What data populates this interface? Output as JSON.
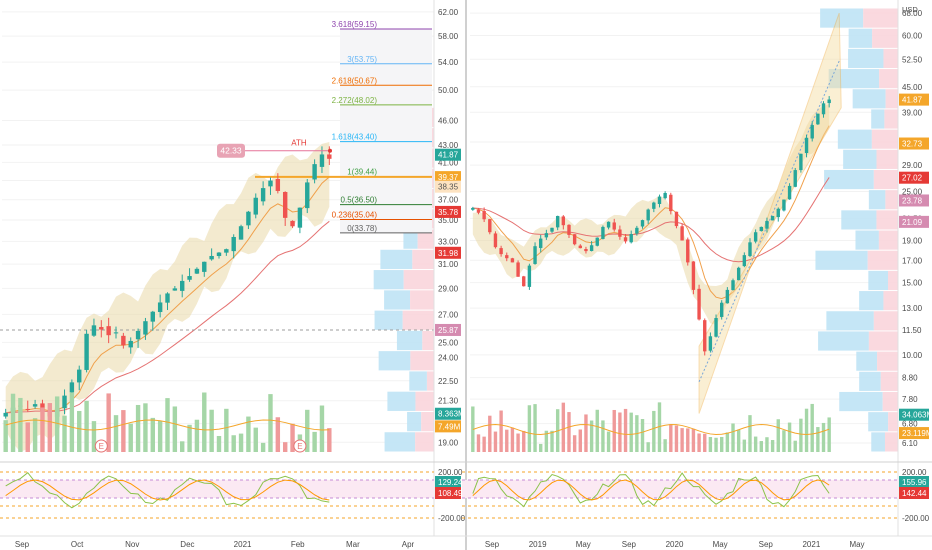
{
  "colors": {
    "up": "#26a69a",
    "down": "#ef5350",
    "vol_up": "#a5d6a7",
    "vol_down": "#ef9a9a",
    "vol_ma": "#f4a62a",
    "band": "#e9d9a8",
    "ema_fast": "#f0a04b",
    "ema_slow": "#e57373",
    "cci": "#8bc34a",
    "cci_ma": "#ff9800",
    "grid": "#f2f2f2",
    "text": "#4a4a4a",
    "white": "#ffffff"
  },
  "chart_data": [
    {
      "type": "candlestick",
      "name": "left-daily",
      "x_ticks": [
        "Sep",
        "Oct",
        "Nov",
        "Dec",
        "2021",
        "Feb",
        "Mar",
        "Apr"
      ],
      "price_ticks": [
        "62.00",
        "58.00",
        "54.00",
        "50.00",
        "46.00",
        "43.00",
        "41.00",
        "39.00",
        "37.00",
        "35.00",
        "33.00",
        "31.00",
        "29.00",
        "27.00",
        "25.00",
        "24.00",
        "22.50",
        "21.30",
        "20.00",
        "19.00"
      ],
      "price_range": [
        18.5,
        63
      ],
      "scale": "log",
      "price_tags": [
        {
          "label": "41.87",
          "value": 41.87,
          "color": "#26a69a"
        },
        {
          "label": "39.37",
          "value": 39.37,
          "color": "#f4a62a"
        },
        {
          "label": "38.35",
          "value": 38.35,
          "color": "#fde3c2"
        },
        {
          "label": "35.78",
          "value": 35.78,
          "color": "#e53935"
        },
        {
          "label": "31.98",
          "value": 31.98,
          "color": "#e53935"
        },
        {
          "label": "25.87",
          "value": 25.87,
          "color": "#d58bb0"
        },
        {
          "label": "8.363M",
          "value": 20.55,
          "color": "#26a69a"
        },
        {
          "label": "7.49M",
          "value": 19.85,
          "color": "#f4a62a"
        }
      ],
      "fib_levels": [
        {
          "label": "3.618(59.15)",
          "value": 59.15,
          "color": "#8e44ad"
        },
        {
          "label": "3(53.75)",
          "value": 53.75,
          "color": "#64b5f6"
        },
        {
          "label": "2.618(50.67)",
          "value": 50.67,
          "color": "#ef6c00"
        },
        {
          "label": "2.272(48.02)",
          "value": 48.02,
          "color": "#7cb342"
        },
        {
          "label": "1.618(43.40)",
          "value": 43.4,
          "color": "#29b6f6"
        },
        {
          "label": "1(39.44)",
          "value": 39.44,
          "color": "#43a047"
        },
        {
          "label": "0.5(36.50)",
          "value": 36.5,
          "color": "#2e7d32"
        },
        {
          "label": "0.236(35.04)",
          "value": 35.04,
          "color": "#e65100"
        },
        {
          "label": "0(33.78)",
          "value": 33.78,
          "color": "#616161"
        }
      ],
      "ath": {
        "label": "ATH",
        "value": 42.33,
        "tag": "42.33"
      },
      "earnings_markers": [
        "E",
        "E"
      ],
      "hline": 39.4,
      "dashed_hline": 25.87,
      "close_path": [
        20.6,
        20.9,
        21.0,
        20.8,
        21.1,
        20.7,
        20.4,
        20.9,
        21.6,
        22.4,
        23.2,
        25.6,
        26.2,
        25.9,
        25.5,
        25.7,
        24.8,
        25.1,
        25.8,
        26.5,
        27.2,
        27.9,
        28.6,
        29.0,
        29.6,
        30.0,
        30.6,
        31.2,
        31.7,
        32.0,
        32.3,
        33.4,
        34.4,
        35.8,
        37.2,
        38.2,
        39.0,
        37.9,
        35.2,
        34.4,
        36.2,
        38.8,
        40.8,
        41.9,
        41.4
      ],
      "cci_ticks": [
        "200.00",
        "-200.00"
      ],
      "cci_tags": [
        {
          "label": "129.24",
          "color": "#26a69a"
        },
        {
          "label": "108.49",
          "color": "#e53935"
        }
      ]
    },
    {
      "type": "candlestick",
      "name": "right-weekly",
      "x_ticks": [
        "Sep",
        "2019",
        "May",
        "Sep",
        "2020",
        "May",
        "Sep",
        "2021",
        "May"
      ],
      "price_ticks": [
        "68.00",
        "60.00",
        "52.50",
        "45.00",
        "39.00",
        "33.00",
        "29.00",
        "25.00",
        "21.50",
        "19.00",
        "17.00",
        "15.00",
        "13.00",
        "11.50",
        "10.00",
        "8.80",
        "7.80",
        "6.80",
        "6.10"
      ],
      "currency": "USD",
      "price_range": [
        5.8,
        70
      ],
      "scale": "log",
      "price_tags": [
        {
          "label": "41.87",
          "value": 41.87,
          "color": "#f4a62a"
        },
        {
          "label": "32.73",
          "value": 32.73,
          "color": "#f4a62a"
        },
        {
          "label": "27.02",
          "value": 27.02,
          "color": "#e53935"
        },
        {
          "label": "23.78",
          "value": 23.78,
          "color": "#d58bb0"
        },
        {
          "label": "21.09",
          "value": 21.09,
          "color": "#d58bb0"
        },
        {
          "label": "34.063M",
          "value": 7.15,
          "color": "#26a69a"
        },
        {
          "label": "23.119M",
          "value": 6.45,
          "color": "#f4a62a"
        }
      ],
      "close_path": [
        22.8,
        22.2,
        21.4,
        19.9,
        18.3,
        17.6,
        17.2,
        16.8,
        15.5,
        14.7,
        16.5,
        18.4,
        19.2,
        19.8,
        20.4,
        21.8,
        20.7,
        19.6,
        18.6,
        18.2,
        17.9,
        18.5,
        19.3,
        20.5,
        21.1,
        20.2,
        19.4,
        18.9,
        19.7,
        20.4,
        21.3,
        22.6,
        23.5,
        24.3,
        24.8,
        22.4,
        20.6,
        19.0,
        16.8,
        14.4,
        12.2,
        10.2,
        11.1,
        12.3,
        13.4,
        14.4,
        15.2,
        16.3,
        17.5,
        18.8,
        19.9,
        20.5,
        21.2,
        21.8,
        22.7,
        23.9,
        25.8,
        28.2,
        30.9,
        33.8,
        36.3,
        38.7,
        41.0,
        41.9
      ],
      "cci_ticks": [
        "200.00",
        "-200.00"
      ],
      "cci_tags": [
        {
          "label": "155.96",
          "color": "#26a69a"
        },
        {
          "label": "142.44",
          "color": "#e53935"
        }
      ]
    }
  ]
}
